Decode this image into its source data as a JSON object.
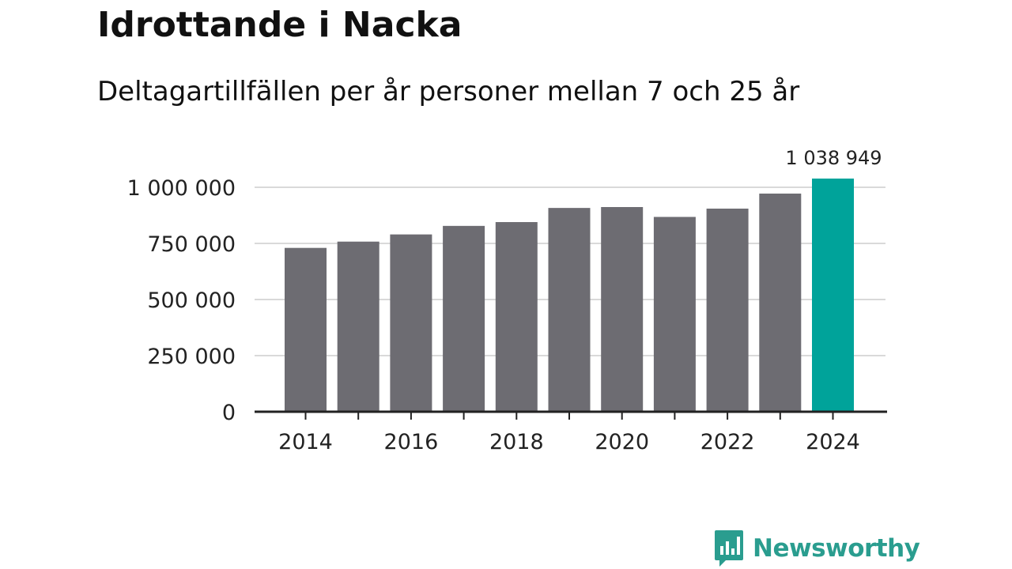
{
  "title": "Idrottande i Nacka",
  "subtitle": "Deltagartillfällen per år personer mellan 7 och 25 år",
  "brand": {
    "name": "Newsworthy",
    "icon": "newsworthy-logo-icon",
    "color": "#2a9d8f"
  },
  "chart_data": {
    "type": "bar",
    "categories": [
      "2014",
      "2015",
      "2016",
      "2017",
      "2018",
      "2019",
      "2020",
      "2021",
      "2022",
      "2023",
      "2024"
    ],
    "values": [
      730000,
      758000,
      790000,
      828000,
      845000,
      908000,
      912000,
      868000,
      905000,
      972000,
      1038949
    ],
    "highlight_index": 10,
    "highlight_label": "1 038 949",
    "colors": {
      "bar": "#6d6c72",
      "highlight": "#00a39a",
      "grid": "#d9d9d9",
      "axis": "#222222"
    },
    "ylim": [
      0,
      1000000
    ],
    "yticks": [
      0,
      250000,
      500000,
      750000,
      1000000
    ],
    "ytick_labels": [
      "0",
      "250 000",
      "500 000",
      "750 000",
      "1 000 000"
    ],
    "xtick_labels": [
      "2014",
      "2016",
      "2018",
      "2020",
      "2022",
      "2024"
    ],
    "xlabel": "",
    "ylabel": "",
    "grid": true,
    "legend": "none"
  }
}
